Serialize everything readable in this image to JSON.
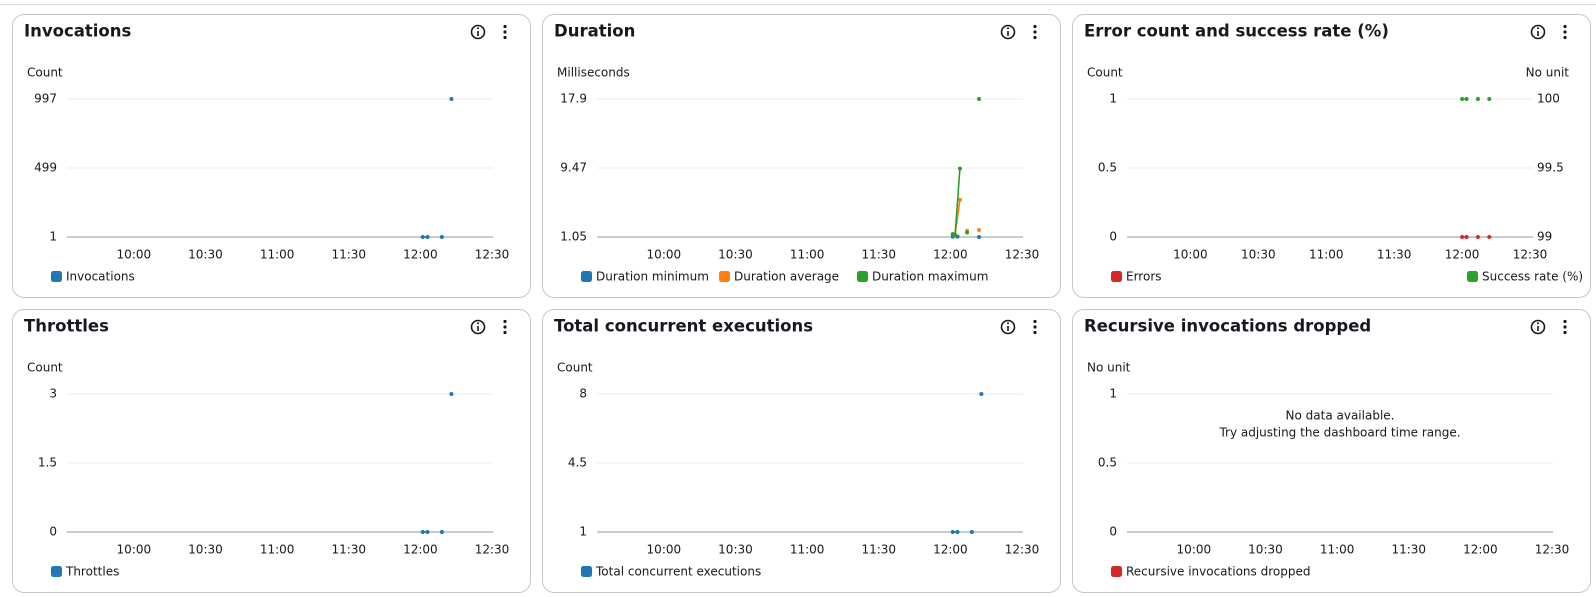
{
  "chart_data": [
    {
      "type": "line",
      "title": "Invocations",
      "y_label": "Count",
      "xlim": [
        572,
        750
      ],
      "xticks": [
        {
          "value": 600,
          "label": "10:00"
        },
        {
          "value": 630,
          "label": "10:30"
        },
        {
          "value": 660,
          "label": "11:00"
        },
        {
          "value": 690,
          "label": "11:30"
        },
        {
          "value": 720,
          "label": "12:00"
        },
        {
          "value": 750,
          "label": "12:30"
        }
      ],
      "ylim": [
        1,
        997
      ],
      "yticks": [
        1,
        499,
        997
      ],
      "grid": true,
      "series": [
        {
          "name": "Invocations",
          "color": "#1f77b4",
          "x": [
            721,
            723,
            727,
            729,
            731,
            733
          ],
          "values": [
            1,
            1,
            null,
            1,
            null,
            997
          ]
        }
      ]
    },
    {
      "type": "line",
      "title": "Duration",
      "y_label": "Milliseconds",
      "xlim": [
        572,
        750
      ],
      "xticks": [
        {
          "value": 600,
          "label": "10:00"
        },
        {
          "value": 630,
          "label": "10:30"
        },
        {
          "value": 660,
          "label": "11:00"
        },
        {
          "value": 690,
          "label": "11:30"
        },
        {
          "value": 720,
          "label": "12:00"
        },
        {
          "value": 750,
          "label": "12:30"
        }
      ],
      "ylim": [
        1.05,
        17.9
      ],
      "yticks": [
        1.05,
        9.47,
        17.9
      ],
      "grid": true,
      "series": [
        {
          "name": "Duration minimum",
          "color": "#1f77b4",
          "x": [
            721,
            723,
            727,
            732
          ],
          "values": [
            1.1,
            1.1,
            null,
            1.05
          ]
        },
        {
          "name": "Duration average",
          "color": "#ff7f0e",
          "x": [
            721,
            722,
            724,
            725,
            727,
            729,
            732
          ],
          "values": [
            1.4,
            1.3,
            5.6,
            null,
            1.8,
            null,
            1.9
          ]
        },
        {
          "name": "Duration maximum",
          "color": "#2ca02c",
          "x": [
            721,
            722,
            724,
            725,
            727,
            729,
            732
          ],
          "values": [
            1.4,
            1.3,
            9.4,
            null,
            1.6,
            null,
            17.9
          ]
        }
      ]
    },
    {
      "type": "line",
      "title": "Error count and success rate (%)",
      "y_label": "Count",
      "y2_label": "No unit",
      "xlim": [
        572,
        750
      ],
      "xticks": [
        {
          "value": 600,
          "label": "10:00"
        },
        {
          "value": 630,
          "label": "10:30"
        },
        {
          "value": 660,
          "label": "11:00"
        },
        {
          "value": 690,
          "label": "11:30"
        },
        {
          "value": 720,
          "label": "12:00"
        },
        {
          "value": 750,
          "label": "12:30"
        }
      ],
      "ylim": [
        0,
        1
      ],
      "yticks": [
        0,
        0.5,
        1
      ],
      "y2lim": [
        99,
        100
      ],
      "y2ticks": [
        99,
        99.5,
        100
      ],
      "grid": true,
      "dashed": true,
      "series": [
        {
          "name": "Errors",
          "color": "#d62728",
          "x": [
            720,
            722,
            724,
            727,
            729,
            732
          ],
          "values": [
            0,
            0,
            null,
            0,
            null,
            0
          ]
        },
        {
          "name": "Success rate (%)",
          "color": "#2ca02c",
          "axis": "y2",
          "x": [
            720,
            722,
            724,
            727,
            729,
            732
          ],
          "values": [
            100,
            100,
            null,
            100,
            null,
            100
          ]
        }
      ]
    },
    {
      "type": "line",
      "title": "Throttles",
      "y_label": "Count",
      "xlim": [
        572,
        750
      ],
      "xticks": [
        {
          "value": 600,
          "label": "10:00"
        },
        {
          "value": 630,
          "label": "10:30"
        },
        {
          "value": 660,
          "label": "11:00"
        },
        {
          "value": 690,
          "label": "11:30"
        },
        {
          "value": 720,
          "label": "12:00"
        },
        {
          "value": 750,
          "label": "12:30"
        }
      ],
      "ylim": [
        0,
        3
      ],
      "yticks": [
        0,
        1.5,
        3
      ],
      "grid": true,
      "series": [
        {
          "name": "Throttles",
          "color": "#1f77b4",
          "x": [
            721,
            723,
            727,
            729,
            731,
            733
          ],
          "values": [
            0,
            0,
            null,
            0,
            null,
            3
          ]
        }
      ]
    },
    {
      "type": "line",
      "title": "Total concurrent executions",
      "y_label": "Count",
      "xlim": [
        572,
        750
      ],
      "xticks": [
        {
          "value": 600,
          "label": "10:00"
        },
        {
          "value": 630,
          "label": "10:30"
        },
        {
          "value": 660,
          "label": "11:00"
        },
        {
          "value": 690,
          "label": "11:30"
        },
        {
          "value": 720,
          "label": "12:00"
        },
        {
          "value": 750,
          "label": "12:30"
        }
      ],
      "ylim": [
        1,
        8
      ],
      "yticks": [
        1,
        4.5,
        8
      ],
      "grid": true,
      "series": [
        {
          "name": "Total concurrent executions",
          "color": "#1f77b4",
          "x": [
            721,
            723,
            727,
            729,
            731,
            733
          ],
          "values": [
            1,
            1,
            null,
            1,
            null,
            8
          ]
        }
      ]
    },
    {
      "type": "line",
      "title": "Recursive invocations dropped",
      "y_label": "No unit",
      "xlim": [
        572,
        750
      ],
      "xticks": [
        {
          "value": 600,
          "label": "10:00"
        },
        {
          "value": 630,
          "label": "10:30"
        },
        {
          "value": 660,
          "label": "11:00"
        },
        {
          "value": 690,
          "label": "11:30"
        },
        {
          "value": 720,
          "label": "12:00"
        },
        {
          "value": 750,
          "label": "12:30"
        }
      ],
      "ylim": [
        0,
        1
      ],
      "yticks": [
        0,
        0.5,
        1
      ],
      "grid": true,
      "message": [
        "No data available.",
        "Try adjusting the dashboard time range."
      ],
      "series": [
        {
          "name": "Recursive invocations dropped",
          "color": "#d62728",
          "x": [],
          "values": []
        }
      ]
    }
  ]
}
